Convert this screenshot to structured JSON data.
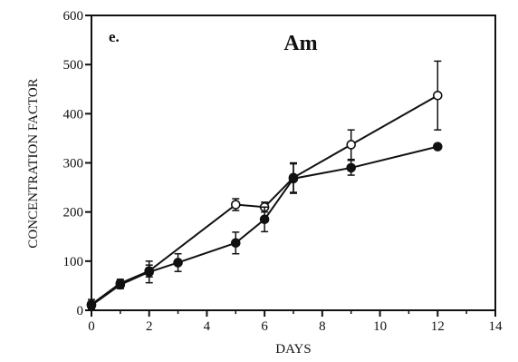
{
  "chart_data": {
    "type": "line",
    "panel_label": "e.",
    "title": "Am",
    "xlabel": "DAYS",
    "ylabel": "CONCENTRATION FACTOR",
    "xlim": [
      0,
      14
    ],
    "ylim": [
      0,
      600
    ],
    "xticks": [
      0,
      2,
      4,
      6,
      8,
      10,
      12,
      14
    ],
    "yticks": [
      0,
      100,
      200,
      300,
      400,
      500,
      600
    ],
    "grid": false,
    "series": [
      {
        "marker": "open-circle",
        "points": [
          {
            "x": 0,
            "y": 12,
            "err": 10
          },
          {
            "x": 1,
            "y": 55,
            "err": 8
          },
          {
            "x": 2,
            "y": 80,
            "err": 12
          },
          {
            "x": 5,
            "y": 215,
            "err": 12
          },
          {
            "x": 6,
            "y": 210,
            "err": 10
          },
          {
            "x": 7,
            "y": 270,
            "err": 30
          },
          {
            "x": 9,
            "y": 337,
            "err": 30
          },
          {
            "x": 12,
            "y": 437,
            "err": 70
          }
        ]
      },
      {
        "marker": "filled-circle",
        "points": [
          {
            "x": 0,
            "y": 10,
            "err": 8
          },
          {
            "x": 1,
            "y": 52,
            "err": 8
          },
          {
            "x": 2,
            "y": 78,
            "err": 22
          },
          {
            "x": 3,
            "y": 97,
            "err": 18
          },
          {
            "x": 5,
            "y": 137,
            "err": 22
          },
          {
            "x": 6,
            "y": 185,
            "err": 25
          },
          {
            "x": 7,
            "y": 268,
            "err": 30
          },
          {
            "x": 9,
            "y": 290,
            "err": 15
          },
          {
            "x": 12,
            "y": 333,
            "err": 0
          }
        ]
      }
    ]
  }
}
